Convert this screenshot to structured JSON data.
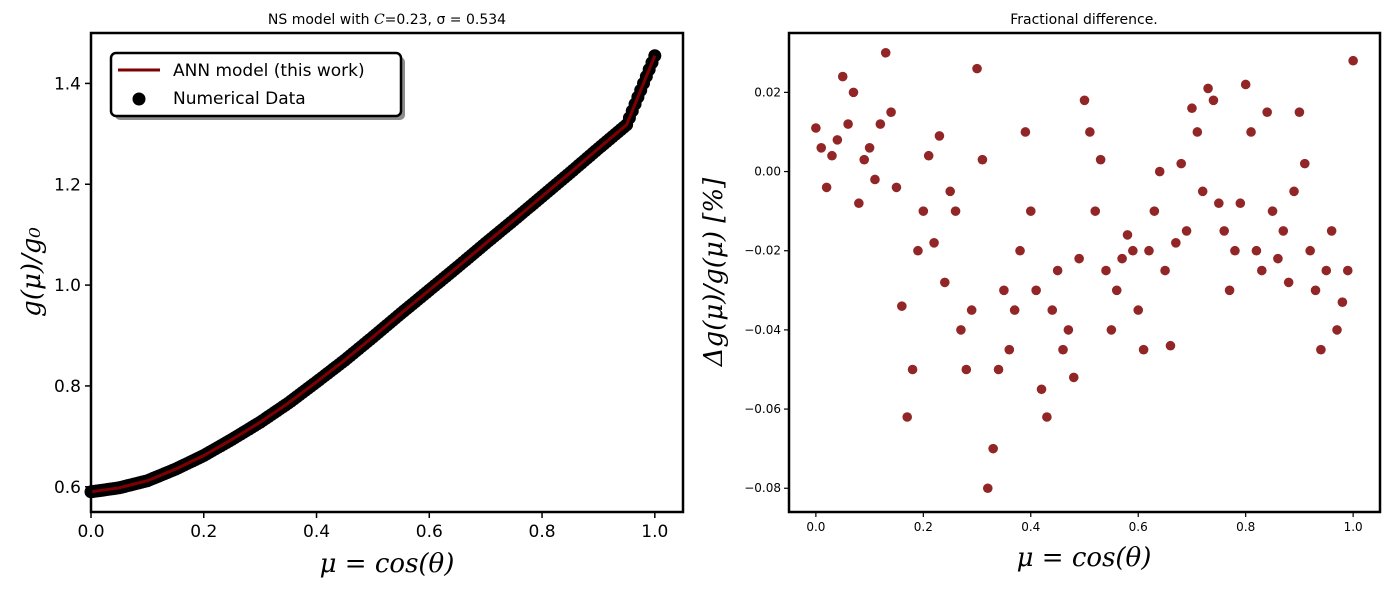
{
  "colors": {
    "line": "#7f0000",
    "diff_points": "#7f0000",
    "data_points": "#000000"
  },
  "chart_data": [
    {
      "type": "line",
      "title": "NS model with C=0.23, σ = 0.534",
      "title_parts": {
        "prefix": "NS model with ",
        "c_symbol": "C",
        "c_value": "=0.23, ",
        "sigma_part": "σ = 0.534"
      },
      "xlabel": "μ = cos(θ)",
      "ylabel": "g(μ)/g₀",
      "xlim": [
        0.0,
        1.05
      ],
      "ylim": [
        0.55,
        1.5
      ],
      "xticks": [
        0.0,
        0.2,
        0.4,
        0.6,
        0.8,
        1.0
      ],
      "xtick_labels": [
        "0.0",
        "0.2",
        "0.4",
        "0.6",
        "0.8",
        "1.0"
      ],
      "yticks": [
        0.6,
        0.8,
        1.0,
        1.2,
        1.4
      ],
      "ytick_labels": [
        "0.6",
        "0.8",
        "1.0",
        "1.2",
        "1.4"
      ],
      "legend_position": "top-left",
      "series": [
        {
          "name": "ANN model (this work)",
          "kind": "line",
          "x": [
            0.0,
            0.05,
            0.1,
            0.15,
            0.2,
            0.25,
            0.3,
            0.35,
            0.4,
            0.45,
            0.5,
            0.55,
            0.6,
            0.65,
            0.7,
            0.75,
            0.8,
            0.85,
            0.9,
            0.95,
            1.0
          ],
          "y": [
            0.59,
            0.598,
            0.612,
            0.635,
            0.662,
            0.694,
            0.728,
            0.766,
            0.808,
            0.851,
            0.897,
            0.944,
            0.99,
            1.036,
            1.083,
            1.129,
            1.176,
            1.223,
            1.271,
            1.318,
            1.455
          ]
        },
        {
          "name": "Numerical Data",
          "kind": "scatter",
          "x": [
            0.0,
            0.05,
            0.1,
            0.15,
            0.2,
            0.25,
            0.3,
            0.35,
            0.4,
            0.45,
            0.5,
            0.55,
            0.6,
            0.65,
            0.7,
            0.75,
            0.8,
            0.85,
            0.9,
            0.95,
            1.0
          ],
          "y": [
            0.59,
            0.598,
            0.612,
            0.635,
            0.662,
            0.694,
            0.728,
            0.766,
            0.808,
            0.851,
            0.897,
            0.944,
            0.99,
            1.036,
            1.083,
            1.129,
            1.176,
            1.223,
            1.271,
            1.318,
            1.455
          ]
        }
      ]
    },
    {
      "type": "scatter",
      "title": "Fractional difference.",
      "xlabel": "μ = cos(θ)",
      "ylabel": "Δg(μ)/g(μ)  [%]",
      "xlim": [
        -0.05,
        1.05
      ],
      "ylim": [
        -0.086,
        0.035
      ],
      "xticks": [
        0.0,
        0.2,
        0.4,
        0.6,
        0.8,
        1.0
      ],
      "xtick_labels": [
        "0.0",
        "0.2",
        "0.4",
        "0.6",
        "0.8",
        "1.0"
      ],
      "yticks": [
        0.02,
        0.0,
        -0.02,
        -0.04,
        -0.06,
        -0.08
      ],
      "ytick_labels": [
        "0.02",
        "0.00",
        "−0.02",
        "−0.04",
        "−0.06",
        "−0.08"
      ],
      "x": [
        0.0,
        0.01,
        0.02,
        0.03,
        0.04,
        0.05,
        0.06,
        0.07,
        0.08,
        0.09,
        0.1,
        0.11,
        0.12,
        0.13,
        0.14,
        0.15,
        0.16,
        0.17,
        0.18,
        0.19,
        0.2,
        0.21,
        0.22,
        0.23,
        0.24,
        0.25,
        0.26,
        0.27,
        0.28,
        0.29,
        0.3,
        0.31,
        0.32,
        0.33,
        0.34,
        0.35,
        0.36,
        0.37,
        0.38,
        0.39,
        0.4,
        0.41,
        0.42,
        0.43,
        0.44,
        0.45,
        0.46,
        0.47,
        0.48,
        0.49,
        0.5,
        0.51,
        0.52,
        0.53,
        0.54,
        0.55,
        0.56,
        0.57,
        0.58,
        0.59,
        0.6,
        0.61,
        0.62,
        0.63,
        0.64,
        0.65,
        0.66,
        0.67,
        0.68,
        0.69,
        0.7,
        0.71,
        0.72,
        0.73,
        0.74,
        0.75,
        0.76,
        0.77,
        0.78,
        0.79,
        0.8,
        0.81,
        0.82,
        0.83,
        0.84,
        0.85,
        0.86,
        0.87,
        0.88,
        0.89,
        0.9,
        0.91,
        0.92,
        0.93,
        0.94,
        0.95,
        0.96,
        0.97,
        0.98,
        0.99,
        1.0
      ],
      "y": [
        0.011,
        0.006,
        -0.004,
        0.004,
        0.008,
        0.024,
        0.012,
        0.02,
        -0.008,
        0.003,
        0.006,
        -0.002,
        0.012,
        0.03,
        0.015,
        -0.004,
        -0.034,
        -0.062,
        -0.05,
        -0.02,
        -0.01,
        0.004,
        -0.018,
        0.009,
        -0.028,
        -0.005,
        -0.01,
        -0.04,
        -0.05,
        -0.035,
        0.026,
        0.003,
        -0.08,
        -0.07,
        -0.05,
        -0.03,
        -0.045,
        -0.035,
        -0.02,
        0.01,
        -0.01,
        -0.03,
        -0.055,
        -0.062,
        -0.035,
        -0.025,
        -0.045,
        -0.04,
        -0.052,
        -0.022,
        0.018,
        0.01,
        -0.01,
        0.003,
        -0.025,
        -0.04,
        -0.03,
        -0.022,
        -0.016,
        -0.02,
        -0.035,
        -0.045,
        -0.02,
        -0.01,
        0.0,
        -0.025,
        -0.044,
        -0.018,
        0.002,
        -0.015,
        0.016,
        0.01,
        -0.005,
        0.021,
        0.018,
        -0.008,
        -0.015,
        -0.03,
        -0.02,
        -0.008,
        0.022,
        0.01,
        -0.02,
        -0.025,
        0.015,
        -0.01,
        -0.022,
        -0.015,
        -0.028,
        -0.005,
        0.015,
        0.002,
        -0.02,
        -0.03,
        -0.045,
        -0.025,
        -0.015,
        -0.04,
        -0.033,
        -0.025,
        0.028
      ]
    }
  ]
}
